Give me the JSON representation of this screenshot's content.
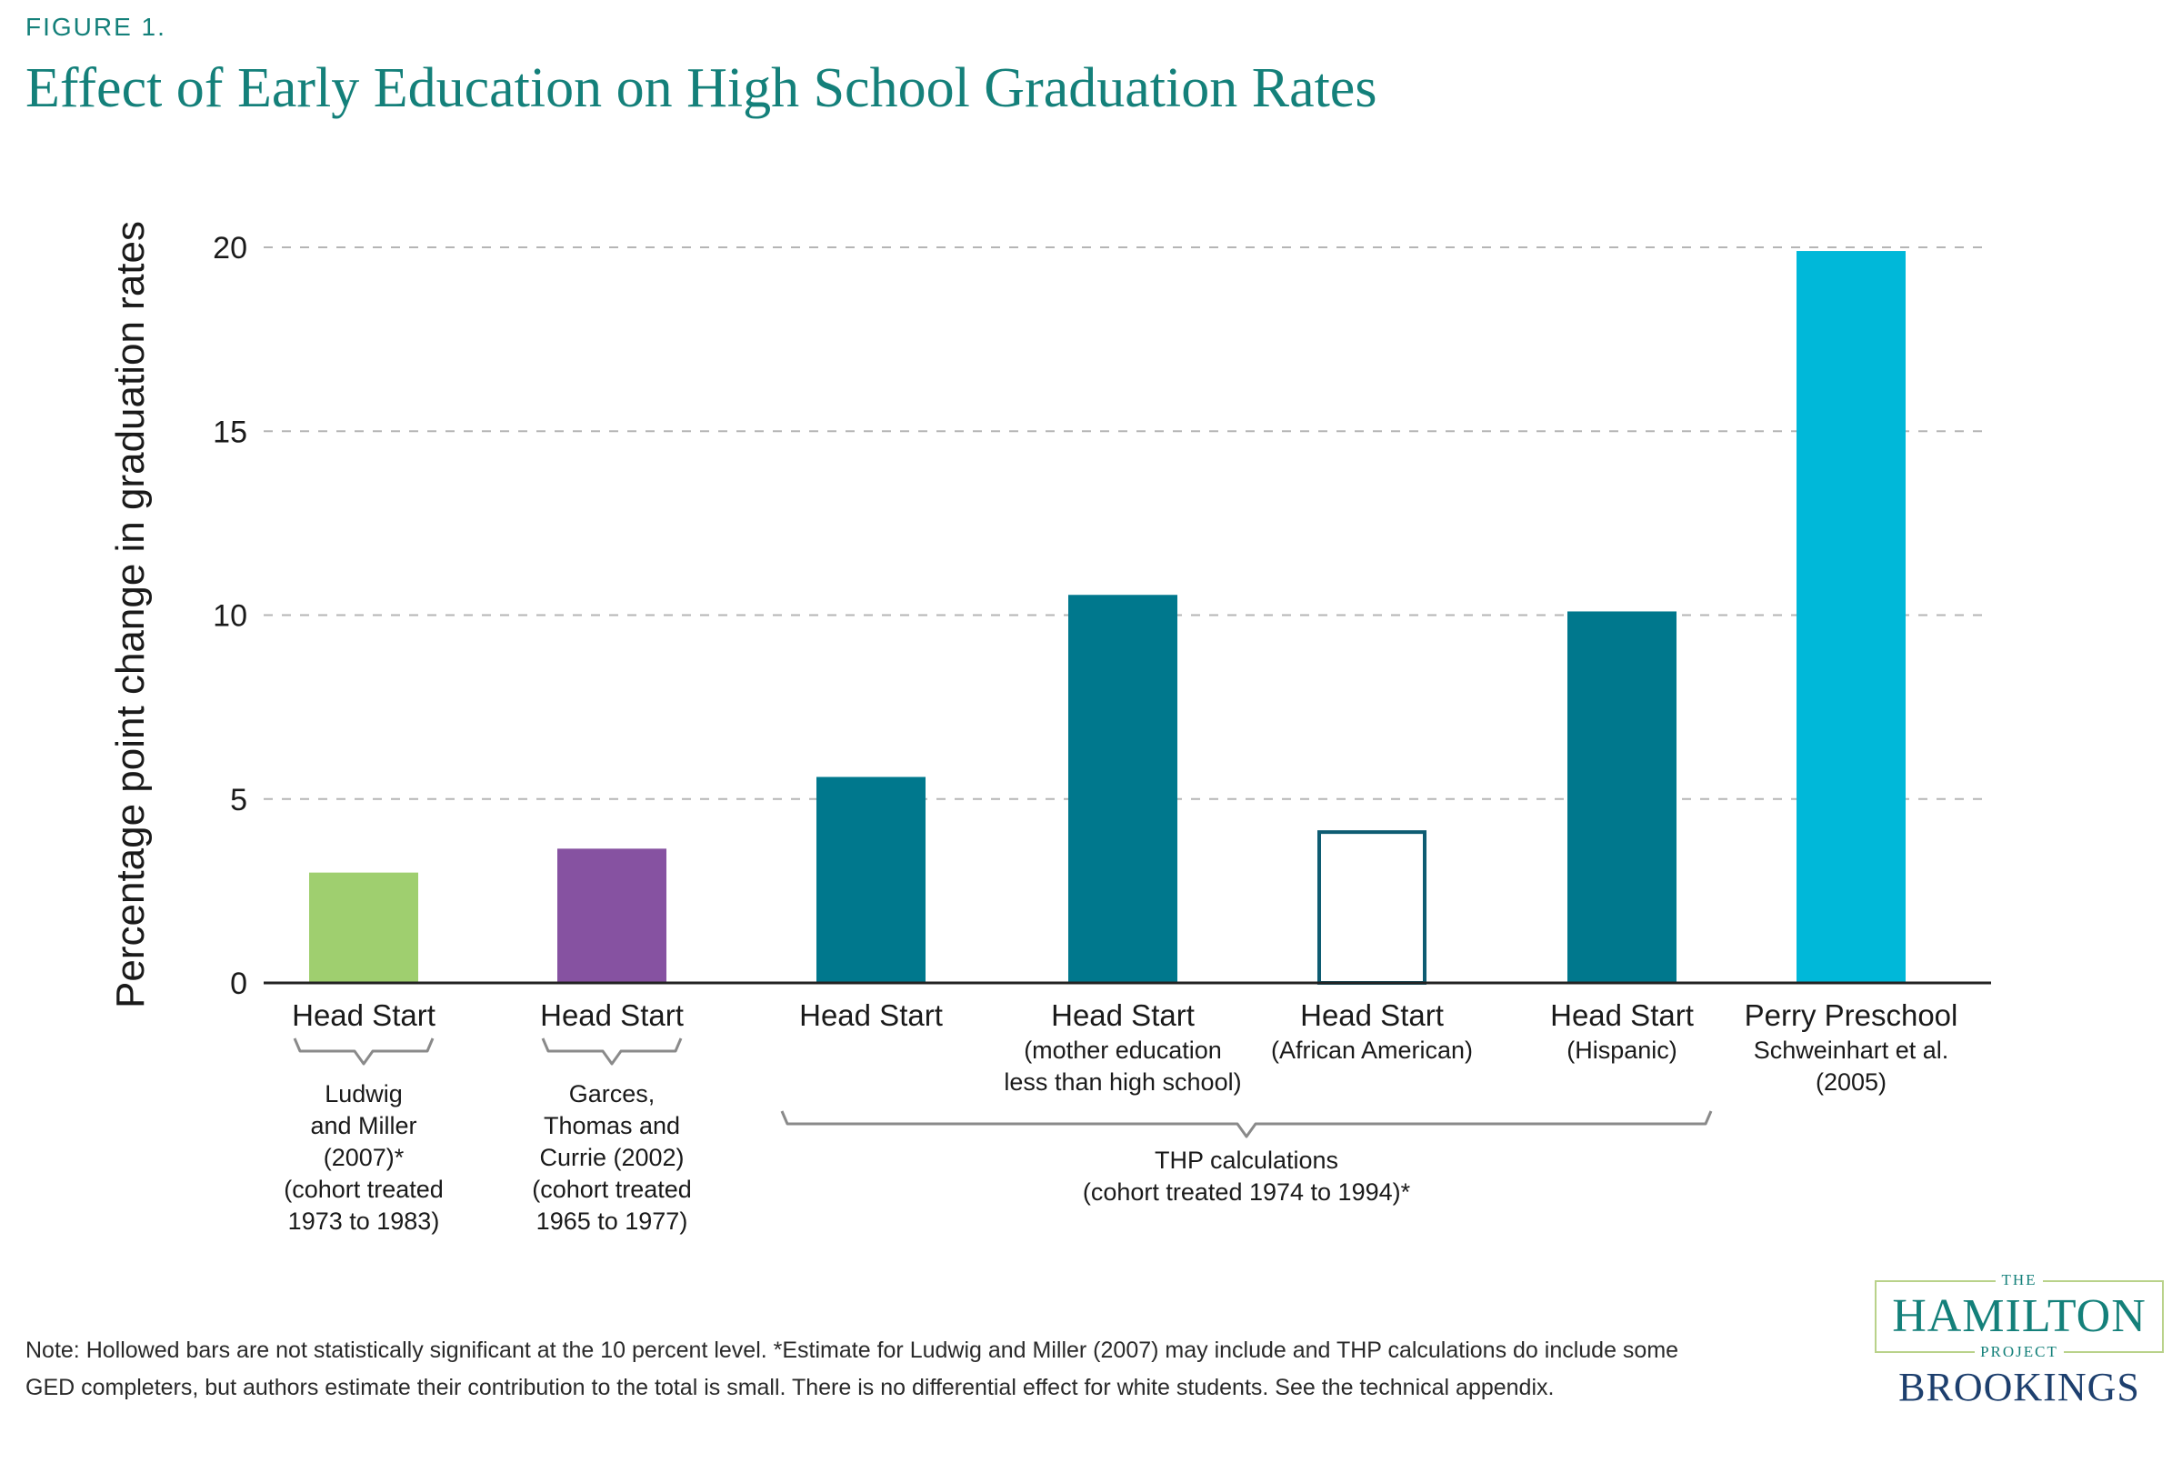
{
  "figure": {
    "label": "FIGURE 1.",
    "title": "Effect of Early Education on High School Graduation Rates"
  },
  "note": "Note: Hollowed bars are not statistically significant at the 10 percent level. *Estimate for Ludwig and Miller (2007) may include and THP calculations do include some GED completers, but authors estimate their contribution to the total is small. There is no differential effect for white students. See the technical appendix.",
  "logo": {
    "the": "THE",
    "hamilton": "HAMILTON",
    "project": "PROJECT",
    "brookings": "BROOKINGS"
  },
  "colors": {
    "ludwig": "#9fcf6f",
    "garces": "#8652a1",
    "thp": "#00788d",
    "perry": "#00b8d9",
    "hollow_stroke": "#0e5c72",
    "grid": "#b5b5b5",
    "axis": "#222222",
    "text": "#1a1a1a",
    "brace": "#8a8a8a"
  },
  "chart_data": {
    "type": "bar",
    "ylabel": "Percentage point change in graduation rates",
    "ylim": [
      0,
      20
    ],
    "yticks": [
      0,
      5,
      10,
      15,
      20
    ],
    "grid": true,
    "bars": [
      {
        "label": "Head Start",
        "sublabel": [],
        "value": 3.0,
        "color_key": "ludwig",
        "hollow": false
      },
      {
        "label": "Head Start",
        "sublabel": [],
        "value": 3.65,
        "color_key": "garces",
        "hollow": false
      },
      {
        "label": "Head Start",
        "sublabel": [],
        "value": 5.6,
        "color_key": "thp",
        "hollow": false
      },
      {
        "label": "Head Start",
        "sublabel": [
          "(mother education",
          "less than high school)"
        ],
        "value": 10.55,
        "color_key": "thp",
        "hollow": false
      },
      {
        "label": "Head Start",
        "sublabel": [
          "(African American)"
        ],
        "value": 4.15,
        "color_key": "thp",
        "hollow": true
      },
      {
        "label": "Head Start",
        "sublabel": [
          "(Hispanic)"
        ],
        "value": 10.1,
        "color_key": "thp",
        "hollow": false
      },
      {
        "label": "Perry Preschool",
        "sublabel": [
          "Schweinhart et al.",
          "(2005)"
        ],
        "value": 19.9,
        "color_key": "perry",
        "hollow": false
      }
    ],
    "groups": [
      {
        "bars": [
          0,
          0
        ],
        "lines": [
          "Ludwig",
          "and Miller",
          "(2007)*",
          "(cohort treated",
          "1973 to 1983)"
        ]
      },
      {
        "bars": [
          1,
          1
        ],
        "lines": [
          "Garces,",
          "Thomas and",
          "Currie (2002)",
          "(cohort treated",
          "1965 to 1977)"
        ]
      },
      {
        "bars": [
          2,
          5
        ],
        "lines": [
          "THP calculations",
          "(cohort treated 1974 to 1994)*"
        ]
      }
    ]
  }
}
